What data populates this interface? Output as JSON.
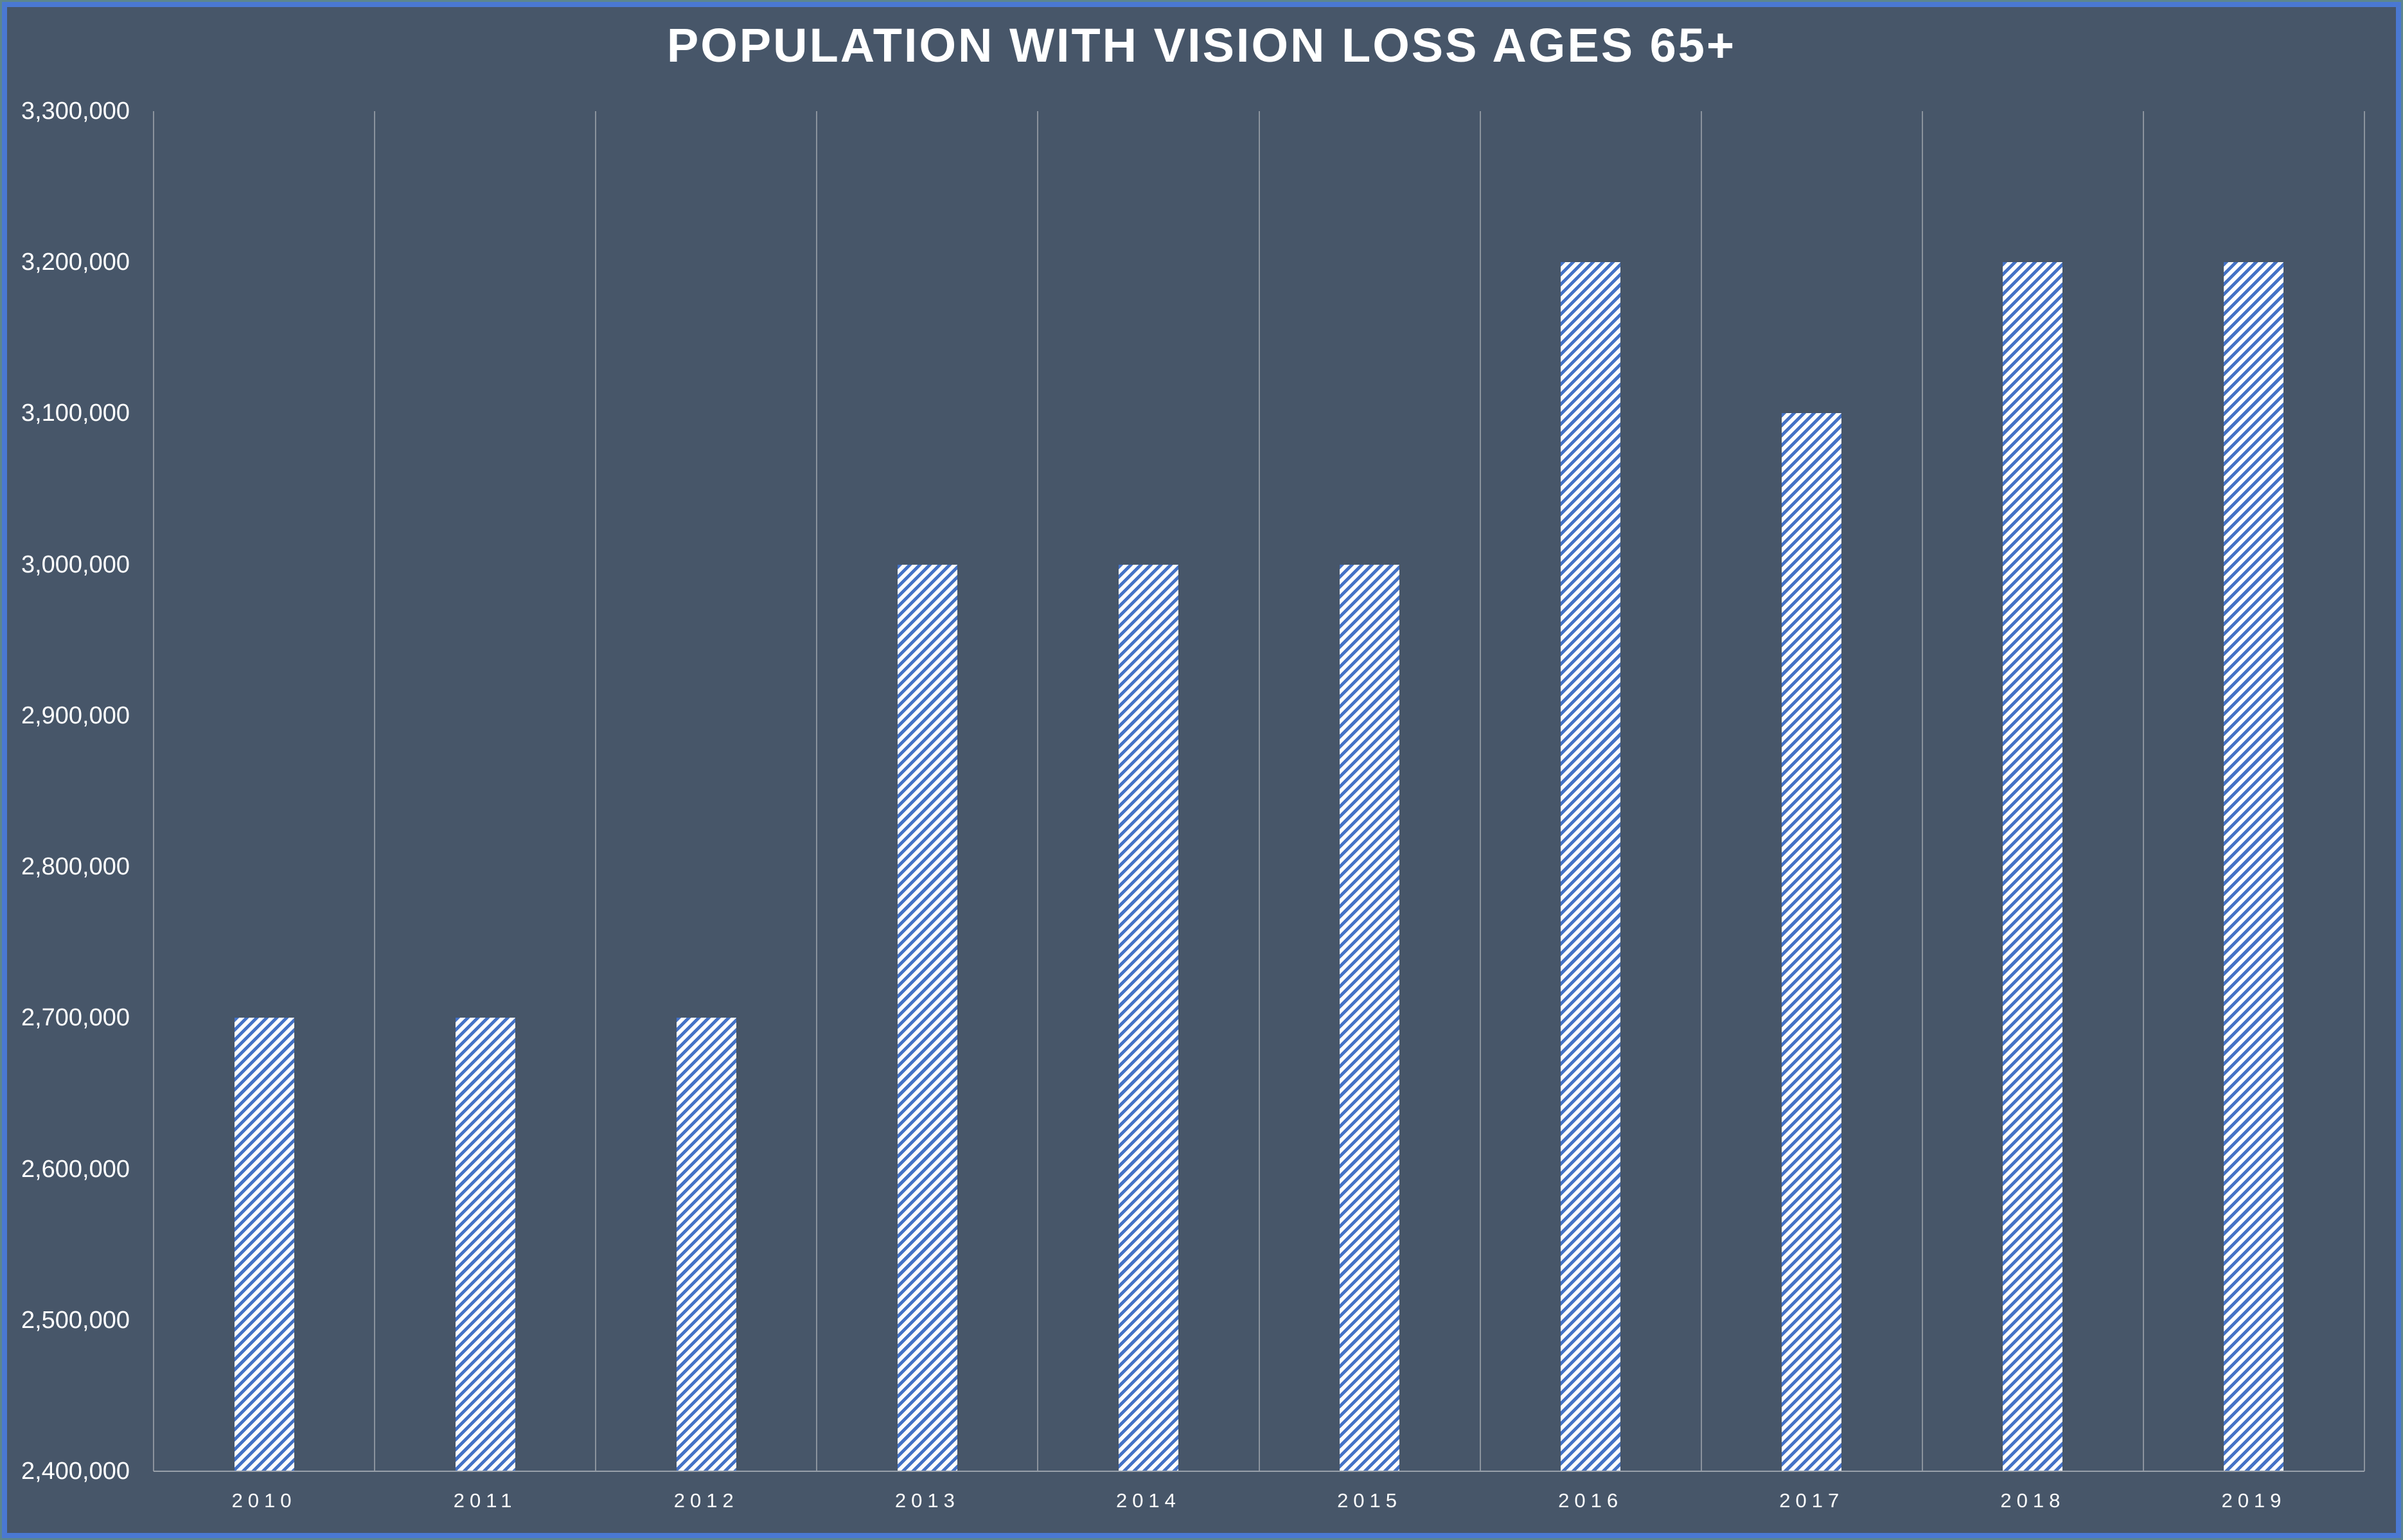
{
  "chart_data": {
    "type": "bar",
    "title": "POPULATION WITH VISION LOSS AGES 65+",
    "categories": [
      "2010",
      "2011",
      "2012",
      "2013",
      "2014",
      "2015",
      "2016",
      "2017",
      "2018",
      "2019"
    ],
    "values": [
      2700000,
      2700000,
      2700000,
      3000000,
      3000000,
      3000000,
      3200000,
      3100000,
      3200000,
      3200000
    ],
    "xlabel": "",
    "ylabel": "",
    "ylim": [
      2400000,
      3300000
    ],
    "ytick_step": 100000,
    "ytick_labels": [
      "2,400,000",
      "2,500,000",
      "2,600,000",
      "2,700,000",
      "2,800,000",
      "2,900,000",
      "3,000,000",
      "3,100,000",
      "3,200,000",
      "3,300,000"
    ],
    "grid": "vertical-only",
    "legend": "none",
    "bar_style": "white-with-blue-diagonal-hatch"
  },
  "colors": {
    "background": "#475669",
    "border_blue": "#4a78d2",
    "border_outer": "#5d868e",
    "bar_fill": "#ffffff",
    "bar_hatch_blue": "#4472c6",
    "gridline": "#8b939d",
    "axis_line": "#98a0aa",
    "text": "#ffffff"
  }
}
